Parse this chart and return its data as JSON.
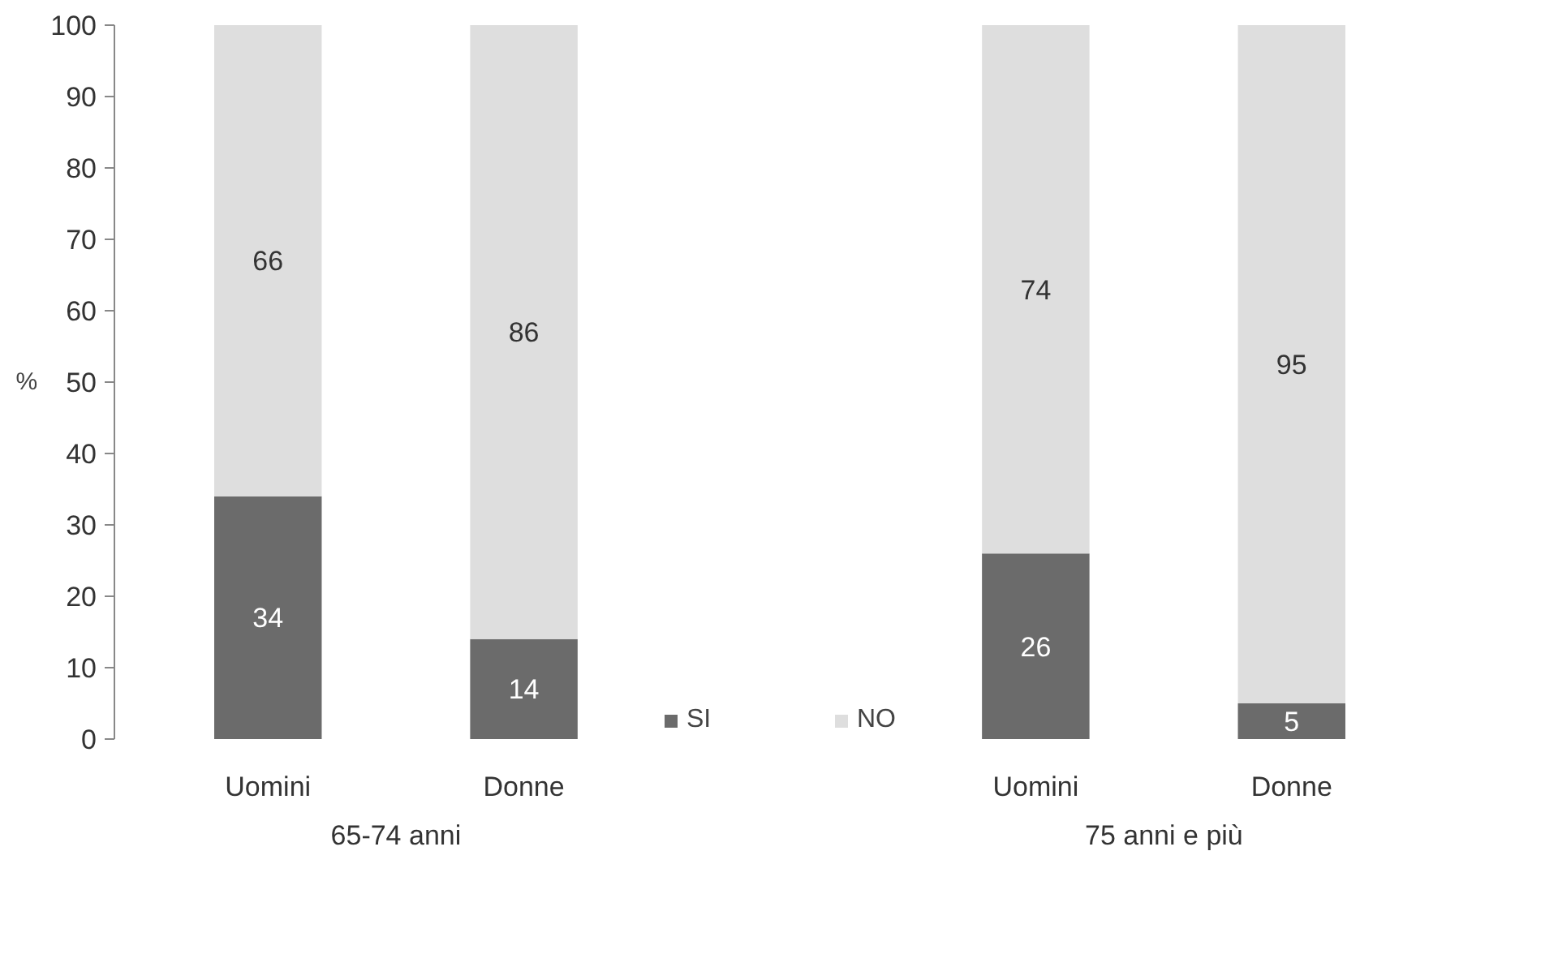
{
  "chart_data": {
    "type": "bar",
    "stacked": true,
    "categories": [
      "Uomini",
      "Donne",
      null,
      "Uomini",
      "Donne"
    ],
    "series": [
      {
        "name": "SI",
        "color": "#6b6b6b",
        "values": [
          34,
          14,
          null,
          26,
          5
        ]
      },
      {
        "name": "NO",
        "color": "#dedede",
        "values": [
          66,
          86,
          null,
          74,
          95
        ]
      }
    ],
    "ylabel": "%",
    "ylim": [
      0,
      100
    ],
    "yticks": [
      0,
      10,
      20,
      30,
      40,
      50,
      60,
      70,
      80,
      90,
      100
    ],
    "annotations": [
      "65-74 anni",
      "75 anni e più"
    ],
    "data_labels": true,
    "grid": false,
    "legend": "bottom"
  }
}
